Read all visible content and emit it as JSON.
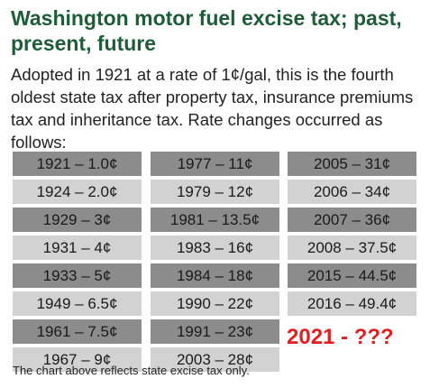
{
  "title": "Washington motor fuel excise tax; past, present, future",
  "intro": "Adopted in 1921 at a rate of 1¢/gal, this is the fourth oldest state tax after property tax, insurance premiums tax and inheritance tax. Rate changes occurred as follows:",
  "columns": [
    [
      "1921 – 1.0¢",
      "1924 – 2.0¢",
      "1929 – 3¢",
      "1931 – 4¢",
      "1933 – 5¢",
      "1949 – 6.5¢",
      "1961 – 7.5¢",
      "1967 – 9¢"
    ],
    [
      "1977 – 11¢",
      "1979 – 12¢",
      "1981 – 13.5¢",
      "1983 – 16¢",
      "1984 – 18¢",
      "1990 – 22¢",
      "1991 – 23¢",
      "2003 – 28¢"
    ],
    [
      "2005 – 31¢",
      "2006 – 34¢",
      "2007 – 36¢",
      "2008 – 37.5¢",
      "2015 – 44.5¢",
      "2016 – 49.4¢"
    ]
  ],
  "future_label": "2021 - ???",
  "footnote": "The chart above reflects state excise tax only.",
  "colors": {
    "title": "#1f5c38",
    "dark_cell": "#8c8c8c",
    "light_cell": "#d2d2d2",
    "future": "#e02020"
  }
}
